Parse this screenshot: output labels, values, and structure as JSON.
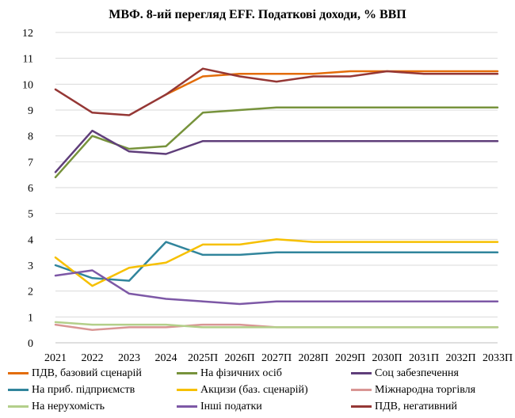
{
  "chart_data": {
    "type": "line",
    "title": "МВФ. 8-ий перегляд EFF. Податкові доходи, % ВВП",
    "categories": [
      "2021",
      "2022",
      "2023",
      "2024",
      "2025П",
      "2026П",
      "2027П",
      "2028П",
      "2029П",
      "2030П",
      "2031П",
      "2032П",
      "2033П"
    ],
    "ylim": [
      0,
      12
    ],
    "yticks": [
      "0",
      "1",
      "2",
      "3",
      "4",
      "5",
      "6",
      "7",
      "8",
      "9",
      "10",
      "11",
      "12"
    ],
    "grid": true,
    "legend_position": "bottom",
    "series": [
      {
        "name": "ПДВ, базовий сценарій",
        "color": "#E36C09",
        "values": [
          null,
          null,
          null,
          9.6,
          10.3,
          10.4,
          10.4,
          10.4,
          10.5,
          10.5,
          10.5,
          10.5,
          10.5
        ]
      },
      {
        "name": "На фізичних осіб",
        "color": "#77933C",
        "values": [
          6.4,
          8.0,
          7.5,
          7.6,
          8.9,
          9.0,
          9.1,
          9.1,
          9.1,
          9.1,
          9.1,
          9.1,
          9.1
        ]
      },
      {
        "name": "Соц забезпечення",
        "color": "#5F3E7A",
        "values": [
          6.6,
          8.2,
          7.4,
          7.3,
          7.8,
          7.8,
          7.8,
          7.8,
          7.8,
          7.8,
          7.8,
          7.8,
          7.8
        ]
      },
      {
        "name": "На приб. підприємств",
        "color": "#31859C",
        "values": [
          3.0,
          2.5,
          2.4,
          3.9,
          3.4,
          3.4,
          3.5,
          3.5,
          3.5,
          3.5,
          3.5,
          3.5,
          3.5
        ]
      },
      {
        "name": "Акцизи (баз. сценарій)",
        "color": "#F6C000",
        "values": [
          3.3,
          2.2,
          2.9,
          3.1,
          3.8,
          3.8,
          4.0,
          3.9,
          3.9,
          3.9,
          3.9,
          3.9,
          3.9
        ]
      },
      {
        "name": "Міжнародна торгівля",
        "color": "#D99694",
        "values": [
          0.7,
          0.5,
          0.6,
          0.6,
          0.7,
          0.7,
          0.6,
          0.6,
          0.6,
          0.6,
          0.6,
          0.6,
          0.6
        ]
      },
      {
        "name": "На нерухомість",
        "color": "#B3CF8A",
        "values": [
          0.8,
          0.7,
          0.7,
          0.7,
          0.6,
          0.6,
          0.6,
          0.6,
          0.6,
          0.6,
          0.6,
          0.6,
          0.6
        ]
      },
      {
        "name": "Інші податки",
        "color": "#7D58A6",
        "values": [
          2.6,
          2.8,
          1.9,
          1.7,
          1.6,
          1.5,
          1.6,
          1.6,
          1.6,
          1.6,
          1.6,
          1.6,
          1.6
        ]
      },
      {
        "name": "ПДВ, негативний",
        "color": "#953735",
        "values": [
          9.8,
          8.9,
          8.8,
          9.6,
          10.6,
          10.3,
          10.1,
          10.3,
          10.3,
          10.5,
          10.4,
          10.4,
          10.4
        ]
      }
    ]
  }
}
